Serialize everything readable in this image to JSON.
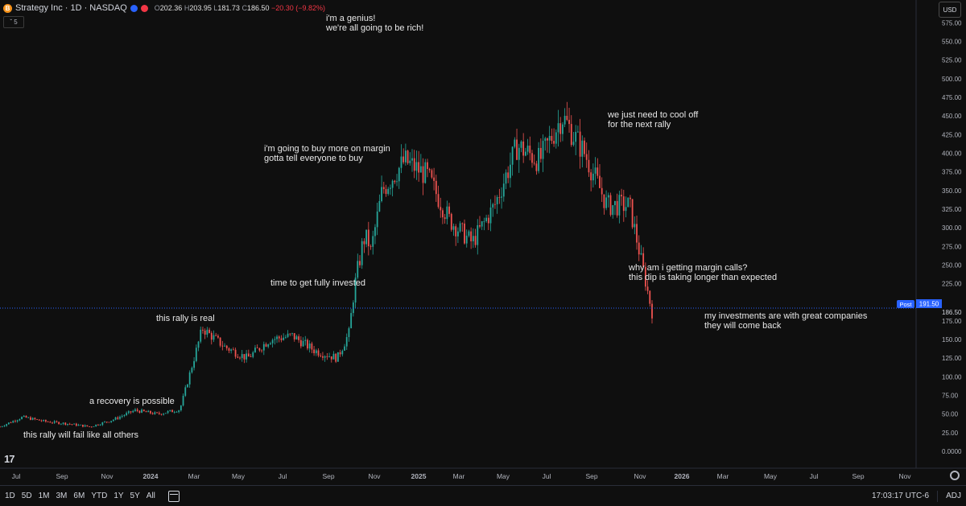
{
  "header": {
    "logo_letter": "B",
    "symbol": "Strategy Inc · 1D · NASDAQ",
    "open_label": "O",
    "open": "202.36",
    "high_label": "H",
    "high": "203.95",
    "low_label": "L",
    "low": "181.73",
    "close_label": "C",
    "close": "186.50",
    "change": "−20.30 (−9.82%)",
    "collapse": "ˇ 5"
  },
  "currency": "USD",
  "price_axis": {
    "ticks": [
      "575.00",
      "550.00",
      "525.00",
      "500.00",
      "475.00",
      "450.00",
      "425.00",
      "400.00",
      "375.00",
      "350.00",
      "325.00",
      "300.00",
      "275.00",
      "250.00",
      "225.00",
      "175.00",
      "150.00",
      "125.00",
      "100.00",
      "75.00",
      "50.00",
      "25.00",
      "0.0000"
    ],
    "post_label": "Post",
    "post_value": "191.50",
    "last_value": "186.50"
  },
  "time_axis": [
    "Jul",
    "Sep",
    "Nov",
    "2024",
    "Mar",
    "May",
    "Jul",
    "Sep",
    "Nov",
    "2025",
    "Mar",
    "May",
    "Jul",
    "Sep",
    "Nov",
    "2026",
    "Mar",
    "May",
    "Jul",
    "Sep",
    "Nov"
  ],
  "annotations": [
    {
      "line1": "this rally will fail like all others",
      "line2": ""
    },
    {
      "line1": "a recovery is possible",
      "line2": ""
    },
    {
      "line1": "this rally is real",
      "line2": ""
    },
    {
      "line1": "time to get fully invested",
      "line2": ""
    },
    {
      "line1": "i'm going to buy more on margin",
      "line2": "gotta tell everyone to buy"
    },
    {
      "line1": "i'm a genius!",
      "line2": "we're all going to be rich!"
    },
    {
      "line1": "we just need to cool off",
      "line2": "for the next rally"
    },
    {
      "line1": "why am i getting margin calls?",
      "line2": "this dip is taking longer than expected"
    },
    {
      "line1": "my investments are with great companies",
      "line2": "they will come back"
    }
  ],
  "bottom": {
    "ranges": [
      "1D",
      "5D",
      "1M",
      "3M",
      "6M",
      "YTD",
      "1Y",
      "5Y",
      "All"
    ],
    "time": "17:03:17 UTC-6",
    "adj": "ADJ"
  },
  "chart_data": {
    "type": "line",
    "x": [
      "2023-06",
      "2023-07",
      "2023-08",
      "2023-09",
      "2023-10",
      "2023-11",
      "2023-12",
      "2024-01",
      "2024-02",
      "2024-03",
      "2024-04",
      "2024-05",
      "2024-06",
      "2024-07",
      "2024-08",
      "2024-09",
      "2024-10",
      "2024-11",
      "2024-12",
      "2025-01",
      "2025-02",
      "2025-03",
      "2025-04",
      "2025-05",
      "2025-06",
      "2025-07",
      "2025-08",
      "2025-09",
      "2025-10",
      "2025-11"
    ],
    "series": [
      {
        "values": [
          33,
          46,
          40,
          37,
          33,
          42,
          55,
          50,
          56,
          165,
          140,
          125,
          150,
          155,
          135,
          125,
          190,
          350,
          390,
          370,
          310,
          280,
          330,
          410,
          390,
          450,
          400,
          330,
          330,
          186.5
        ]
      }
    ],
    "ylim": [
      0,
      590
    ],
    "colors": {
      "up": "#26a69a",
      "down": "#ef5350",
      "background": "#0f0f0f",
      "price_line": "#2962ff"
    }
  }
}
